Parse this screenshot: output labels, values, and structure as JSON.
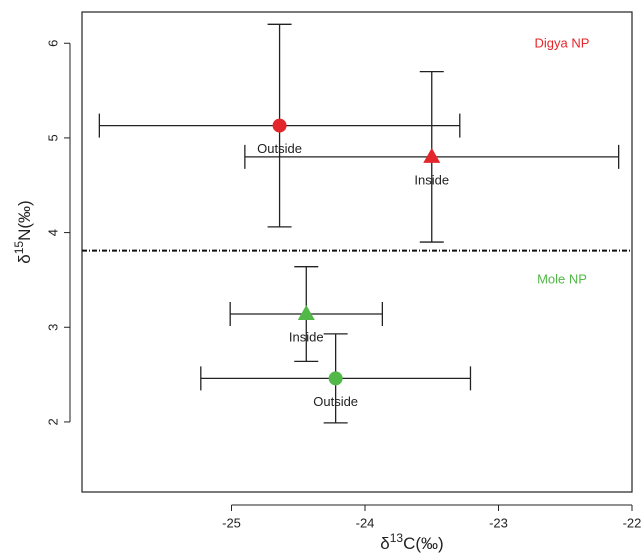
{
  "chart_data": {
    "type": "scatter",
    "x_label": {
      "prefix": "δ",
      "sup": "13",
      "suffix": "C(‰)"
    },
    "y_label": {
      "prefix": "δ",
      "sup": "15",
      "suffix": "N(‰)"
    },
    "xlim": [
      -26.12,
      -22
    ],
    "ylim": [
      1.26,
      6.33
    ],
    "xticks": [
      -25,
      -24,
      -23,
      -22
    ],
    "yticks": [
      2,
      3,
      4,
      5,
      6
    ],
    "points": [
      {
        "label": "Outside",
        "shape": "circle",
        "color": "#e3262b",
        "x": -24.64,
        "y": 5.13,
        "xerr": 1.35,
        "yerr": 1.07
      },
      {
        "label": "Inside",
        "shape": "triangle",
        "color": "#e3262b",
        "x": -23.5,
        "y": 4.8,
        "xerr": 1.4,
        "yerr": 0.9
      },
      {
        "label": "Inside",
        "shape": "triangle",
        "color": "#52b848",
        "x": -24.44,
        "y": 3.14,
        "xerr": 0.57,
        "yerr": 0.5
      },
      {
        "label": "Outside",
        "shape": "circle",
        "color": "#52b848",
        "x": -24.22,
        "y": 2.46,
        "xerr": 1.01,
        "yerr": 0.47
      }
    ],
    "hline": 3.81,
    "annotations": [
      {
        "text": "Digya NP",
        "color": "#e3262b"
      },
      {
        "text": "Mole NP",
        "color": "#52b848"
      }
    ]
  }
}
